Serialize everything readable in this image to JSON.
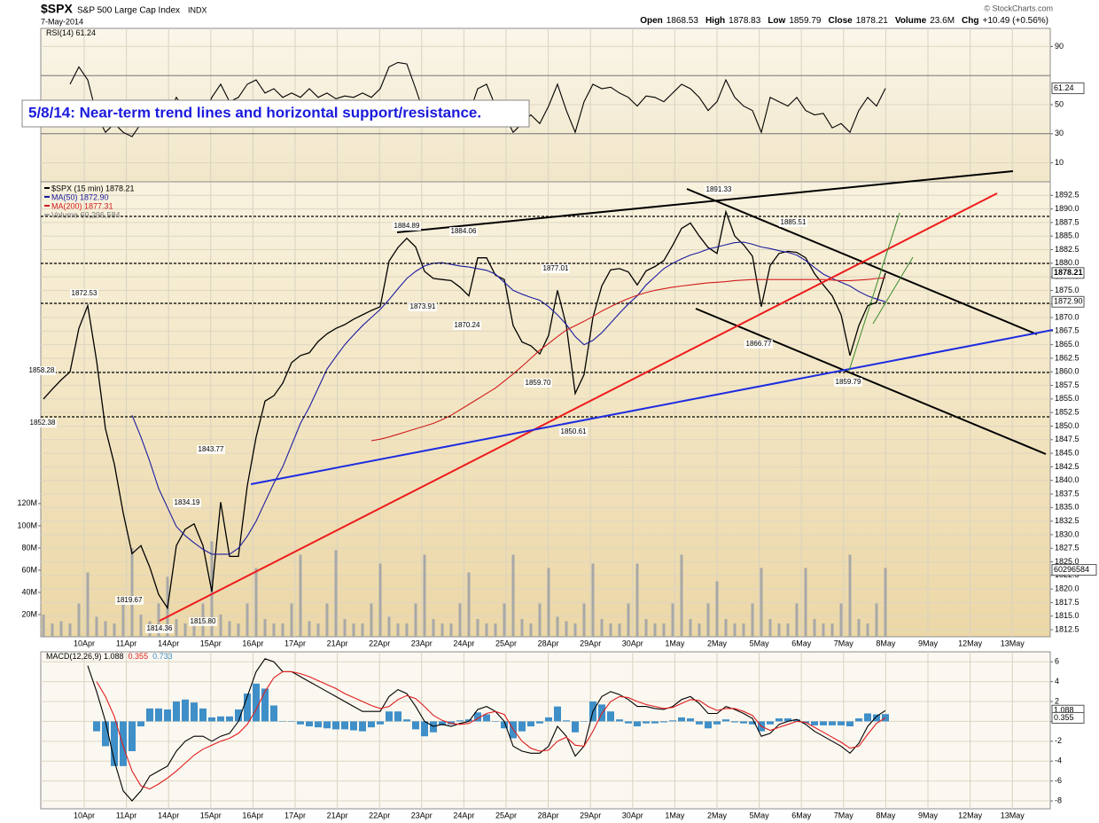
{
  "header": {
    "symbol": "$SPX",
    "name": "S&P 500 Large Cap Index",
    "exchange": "INDX",
    "date": "7-May-2014",
    "quote": [
      {
        "label": "Open",
        "value": "1868.53"
      },
      {
        "label": "High",
        "value": "1878.83"
      },
      {
        "label": "Low",
        "value": "1859.79"
      },
      {
        "label": "Close",
        "value": "1878.21"
      },
      {
        "label": "Volume",
        "value": "23.6M"
      },
      {
        "label": "Chg",
        "value": "+10.49 (+0.56%)"
      }
    ],
    "credit": "© StockCharts.com"
  },
  "note": "5/8/14:  Near-term trend lines and horizontal support/resistance.",
  "annotations": [
    "1872.53",
    "1858.28",
    "1852.38",
    "1819.67",
    "1814.36",
    "1834.19",
    "1843.77",
    "1815.80",
    "1884.89",
    "1873.91",
    "1884.06",
    "1870.24",
    "1859.70",
    "1877.01",
    "1850.61",
    "1891.33",
    "1866.77",
    "1885.51",
    "1859.79"
  ],
  "chart_data": [
    {
      "type": "line",
      "ylim": [
        0,
        100
      ],
      "yticks": [
        10,
        30,
        50,
        90
      ],
      "levels": [
        30,
        70
      ],
      "grid": true,
      "value_markers": [
        61.24
      ],
      "series": [
        {
          "name": "RSI(14) 61.24",
          "color": "#000000",
          "values": [
            null,
            null,
            null,
            64,
            76,
            67,
            43,
            31,
            37,
            31,
            28,
            37,
            43,
            37,
            43,
            55,
            46,
            49,
            40,
            55,
            64,
            52,
            55,
            64,
            67,
            58,
            61,
            55,
            58,
            55,
            61,
            55,
            58,
            54,
            56,
            55,
            58,
            55,
            61,
            76,
            79,
            78,
            61,
            43,
            52,
            49,
            50,
            46,
            43,
            61,
            64,
            49,
            43,
            31,
            37,
            43,
            37,
            49,
            64,
            46,
            31,
            52,
            64,
            61,
            62,
            58,
            55,
            49,
            56,
            55,
            52,
            58,
            64,
            61,
            55,
            46,
            52,
            67,
            55,
            49,
            46,
            31,
            55,
            52,
            49,
            55,
            46,
            43,
            44,
            34,
            37,
            31,
            46,
            55,
            49,
            61.24
          ]
        }
      ]
    },
    {
      "type": "line",
      "ylim": [
        1811.2,
        1895
      ],
      "grid": true,
      "yticks": [
        1812.5,
        {
          "value": 1815,
          "label": "1815.0"
        },
        1817.5,
        {
          "value": 1820,
          "label": "1820.0"
        },
        1822.5,
        {
          "value": 1825,
          "label": "1825.0"
        },
        1827.5,
        {
          "value": 1830,
          "label": "1830.0"
        },
        1832.5,
        {
          "value": 1835,
          "label": "1835.0"
        },
        1837.5,
        {
          "value": 1840,
          "label": "1840.0"
        },
        1842.5,
        {
          "value": 1845,
          "label": "1845.0"
        },
        1847.5,
        {
          "value": 1850,
          "label": "1850.0"
        },
        1852.5,
        {
          "value": 1855,
          "label": "1855.0"
        },
        1857.5,
        {
          "value": 1860,
          "label": "1860.0"
        },
        1862.5,
        {
          "value": 1865,
          "label": "1865.0"
        },
        1867.5,
        {
          "value": 1870,
          "label": "1870.0"
        },
        1872.5,
        {
          "value": 1875,
          "label": "1875.0"
        },
        1877.5,
        {
          "value": 1880,
          "label": "1880.0"
        },
        1882.5,
        {
          "value": 1885,
          "label": "1885.0"
        },
        1887.5,
        {
          "value": 1890,
          "label": "1890.0"
        },
        1892.5
      ],
      "y2lim": [
        0,
        410
      ],
      "y2ticks": [
        {
          "value": 20,
          "label": "20M"
        },
        {
          "value": 40,
          "label": "40M"
        },
        {
          "value": 60,
          "label": "60M"
        },
        {
          "value": 80,
          "label": "80M"
        },
        {
          "value": 100,
          "label": "100M"
        },
        {
          "value": 120,
          "label": "120M"
        }
      ],
      "date_labels": [
        "10Apr",
        "11Apr",
        "14Apr",
        "15Apr",
        "16Apr",
        "17Apr",
        "21Apr",
        "22Apr",
        "23Apr",
        "24Apr",
        "25Apr",
        "28Apr",
        "29Apr",
        "30Apr",
        "1May",
        "2May",
        "5May",
        "6May",
        "7May",
        "8May",
        "9May",
        "12May",
        "13May"
      ],
      "value_markers": [
        1878.21,
        {
          "value": 1872.9,
          "label": "1872.90"
        }
      ],
      "y2_markers": [
        {
          "value": 60.296584,
          "label": "60296584"
        }
      ],
      "series": [
        {
          "name": "Volume 60,296,584",
          "type": "bar",
          "axis": "y2",
          "color": "#a8a8a8",
          "values": [
            20,
            12,
            14,
            12,
            30,
            58,
            18,
            14,
            12,
            30,
            80,
            20,
            14,
            30,
            54,
            16,
            12,
            12,
            30,
            86,
            20,
            14,
            12,
            30,
            62,
            16,
            12,
            12,
            30,
            74,
            14,
            12,
            30,
            78,
            16,
            12,
            12,
            30,
            66,
            18,
            12,
            12,
            30,
            74,
            16,
            12,
            12,
            30,
            58,
            16,
            12,
            12,
            30,
            74,
            16,
            12,
            30,
            62,
            18,
            14,
            12,
            30,
            66,
            16,
            12,
            12,
            30,
            66,
            16,
            12,
            12,
            30,
            74,
            16,
            12,
            30,
            50,
            16,
            12,
            12,
            30,
            62,
            16,
            12,
            12,
            30,
            62,
            16,
            12,
            12,
            30,
            74,
            16,
            12,
            30,
            62
          ]
        },
        {
          "name": "$SPX (15 min) 1878.21",
          "color": "#000000",
          "values": [
            1855,
            1856.8,
            1858.5,
            1860,
            1868,
            1872.2,
            1862,
            1849.5,
            1843,
            1834,
            1826.5,
            1828,
            1824,
            1819,
            1816.5,
            1828,
            1831,
            1832,
            1828,
            1819.5,
            1836,
            1826,
            1826,
            1839,
            1848,
            1854.6,
            1855.6,
            1857.9,
            1861.7,
            1863,
            1863.5,
            1865.6,
            1867,
            1868,
            1868.7,
            1869.7,
            1870.5,
            1871.3,
            1872,
            1880.4,
            1882.9,
            1884.6,
            1883,
            1878.5,
            1877.2,
            1877,
            1876.8,
            1875.6,
            1874,
            1881,
            1881,
            1877.8,
            1877,
            1868.5,
            1865.5,
            1864.8,
            1863.3,
            1866.7,
            1875,
            1868.5,
            1856,
            1859.5,
            1870,
            1875.8,
            1878.8,
            1879,
            1878.4,
            1876,
            1878.6,
            1879.4,
            1880.5,
            1883.3,
            1886.4,
            1887.4,
            1885,
            1882.9,
            1881.8,
            1889.5,
            1885,
            1883.4,
            1881.3,
            1872,
            1879.6,
            1881.8,
            1882.2,
            1882,
            1881,
            1878.1,
            1876,
            1874,
            1870.5,
            1863,
            1868.5,
            1872.2,
            1872.8,
            1878.21
          ]
        },
        {
          "name": "MA(50) 1872.90",
          "color": "#1c1ca0",
          "values": [
            null,
            null,
            null,
            null,
            null,
            null,
            null,
            null,
            null,
            null,
            1852,
            1848,
            1843.5,
            1838.5,
            1835,
            1831.5,
            1829.8,
            1828.5,
            1827.3,
            1826.4,
            1826.4,
            1826.4,
            1827.5,
            1829.7,
            1832.5,
            1836,
            1839.5,
            1842.5,
            1846.5,
            1850.5,
            1853.5,
            1857,
            1860.5,
            1862.8,
            1865,
            1866.8,
            1868.5,
            1870,
            1871.5,
            1873.3,
            1875.3,
            1877.2,
            1878.5,
            1879.5,
            1880,
            1880.1,
            1879.8,
            1879.5,
            1879.3,
            1879,
            1878.7,
            1878,
            1876.5,
            1875,
            1874.3,
            1873.7,
            1873.2,
            1872,
            1870.5,
            1868.7,
            1866.5,
            1865,
            1865.8,
            1867.2,
            1869,
            1870.8,
            1872.5,
            1874,
            1876,
            1877.5,
            1879,
            1880,
            1880.8,
            1881.5,
            1882,
            1882.6,
            1883,
            1883.4,
            1883.8,
            1883.9,
            1883.5,
            1883,
            1882.7,
            1882.3,
            1882,
            1881.5,
            1880.5,
            1879.2,
            1878,
            1877.2,
            1876.5,
            1875.8,
            1874.8,
            1874,
            1873.4,
            1872.9
          ]
        },
        {
          "name": "MA(200) 1877.31",
          "color": "#d01c1c",
          "values": [
            null,
            null,
            null,
            null,
            null,
            null,
            null,
            null,
            null,
            null,
            null,
            null,
            null,
            null,
            null,
            null,
            null,
            null,
            null,
            null,
            null,
            null,
            null,
            null,
            null,
            null,
            null,
            null,
            null,
            null,
            null,
            null,
            null,
            null,
            null,
            null,
            null,
            1847.3,
            1847.6,
            1848,
            1848.5,
            1849,
            1849.5,
            1850,
            1850.5,
            1851.2,
            1852,
            1853,
            1854,
            1855,
            1856,
            1857,
            1858.3,
            1859.6,
            1861,
            1862.5,
            1864,
            1865.2,
            1866.5,
            1867.7,
            1868.5,
            1869.3,
            1870.2,
            1871.2,
            1872,
            1872.8,
            1873.5,
            1874.1,
            1874.6,
            1875,
            1875.3,
            1875.6,
            1875.8,
            1876,
            1876.2,
            1876.4,
            1876.5,
            1876.6,
            1876.8,
            1876.9,
            1877,
            1877,
            1877,
            1877,
            1877,
            1877,
            1877,
            1877,
            1877,
            1876.9,
            1876.8,
            1876.8,
            1876.9,
            1877,
            1877.2,
            1877.31
          ]
        }
      ]
    },
    {
      "type": "line",
      "ylim": [
        -8.8,
        7
      ],
      "yticks": [
        -8,
        -6,
        -4,
        -2,
        0,
        2,
        4,
        6
      ],
      "grid": true,
      "value_markers": [
        1.088,
        0.355
      ],
      "series": [
        {
          "name": "0.733",
          "type": "bar",
          "color": "#3f8fc8",
          "values": [
            null,
            null,
            null,
            null,
            null,
            null,
            -1,
            -2.5,
            -4.5,
            -4.5,
            -3,
            -0.5,
            1.3,
            1.3,
            1.2,
            2,
            2.2,
            1.9,
            1.3,
            0.4,
            0.5,
            0.5,
            1.2,
            2.8,
            3.8,
            3.3,
            1.6,
            0,
            0,
            -0.3,
            -0.5,
            -0.6,
            -0.7,
            -0.8,
            -0.8,
            -0.9,
            -1,
            -0.6,
            -0.3,
            1,
            1,
            0.2,
            -0.8,
            -1.5,
            -1.1,
            -0.4,
            -0.3,
            0.1,
            0.2,
            0.9,
            0.7,
            0,
            -0.7,
            -1.7,
            -1,
            -0.5,
            -0.2,
            0.4,
            1.5,
            0.1,
            -1.1,
            0,
            2,
            1.7,
            1,
            0.2,
            -0.2,
            -0.5,
            -0.2,
            -0.2,
            -0.1,
            0.1,
            0.4,
            0.3,
            -0.3,
            -0.7,
            -0.3,
            0.2,
            -0.1,
            -0.2,
            -0.3,
            -1,
            -0.3,
            0.3,
            0.3,
            0.2,
            -0.2,
            -0.4,
            -0.4,
            -0.4,
            -0.4,
            -0.5,
            0.3,
            0.8,
            0.7,
            0.733
          ]
        },
        {
          "name": "MACD(12,26,9) 1.088",
          "color": "#000000",
          "values": [
            null,
            null,
            null,
            null,
            null,
            5.6,
            3,
            0,
            -4,
            -7,
            -8,
            -7,
            -5.5,
            -5,
            -4.5,
            -3,
            -2,
            -1.5,
            -1.5,
            -2,
            -1.5,
            -1.2,
            0,
            2.5,
            5,
            6.3,
            6,
            5,
            5,
            4.5,
            4,
            3.5,
            3,
            2.5,
            2,
            1.5,
            1,
            1,
            1,
            2.5,
            3.2,
            2.8,
            1.5,
            0,
            -0.5,
            -0.3,
            -0.5,
            -0.2,
            0,
            1.2,
            1.5,
            1,
            0,
            -2.5,
            -3,
            -3.2,
            -3.2,
            -2.5,
            -0.5,
            -1.5,
            -3.5,
            -2.5,
            1,
            2.5,
            3,
            2.7,
            2.2,
            1.5,
            1.5,
            1.3,
            1.2,
            1.5,
            2.2,
            2.5,
            1.8,
            0.8,
            0.8,
            1.5,
            1.2,
            0.8,
            0.3,
            -1.5,
            -1.2,
            -0.3,
            0,
            0.2,
            -0.3,
            -1,
            -1.5,
            -2,
            -2.5,
            -3.2,
            -2.2,
            -0.5,
            0.5,
            1.088
          ]
        },
        {
          "name": "0.355",
          "color": "#e01c1c",
          "values": [
            null,
            null,
            null,
            null,
            null,
            null,
            4,
            2.5,
            0.5,
            -2.5,
            -5,
            -6.5,
            -6.8,
            -6.3,
            -5.7,
            -5,
            -4.2,
            -3.4,
            -2.8,
            -2.4,
            -2,
            -1.7,
            -1.2,
            -0.3,
            1.2,
            3,
            4.4,
            5,
            5,
            4.8,
            4.5,
            4.1,
            3.7,
            3.3,
            2.8,
            2.4,
            2,
            1.6,
            1.3,
            1.5,
            2.2,
            2.6,
            2.3,
            1.5,
            0.6,
            0.1,
            -0.2,
            -0.3,
            -0.2,
            0.3,
            0.8,
            1,
            0.7,
            -0.8,
            -2,
            -2.7,
            -3,
            -2.9,
            -2,
            -1.6,
            -2.4,
            -2.5,
            -1,
            0.8,
            2,
            2.5,
            2.4,
            2,
            1.7,
            1.5,
            1.3,
            1.4,
            1.8,
            2.2,
            2.1,
            1.5,
            1.1,
            1.3,
            1.3,
            1,
            0.6,
            -0.5,
            -0.9,
            -0.6,
            -0.3,
            0,
            -0.1,
            -0.6,
            -1.1,
            -1.6,
            -2.1,
            -2.7,
            -2.5,
            -1.3,
            -0.2,
            0.355
          ]
        }
      ]
    }
  ]
}
